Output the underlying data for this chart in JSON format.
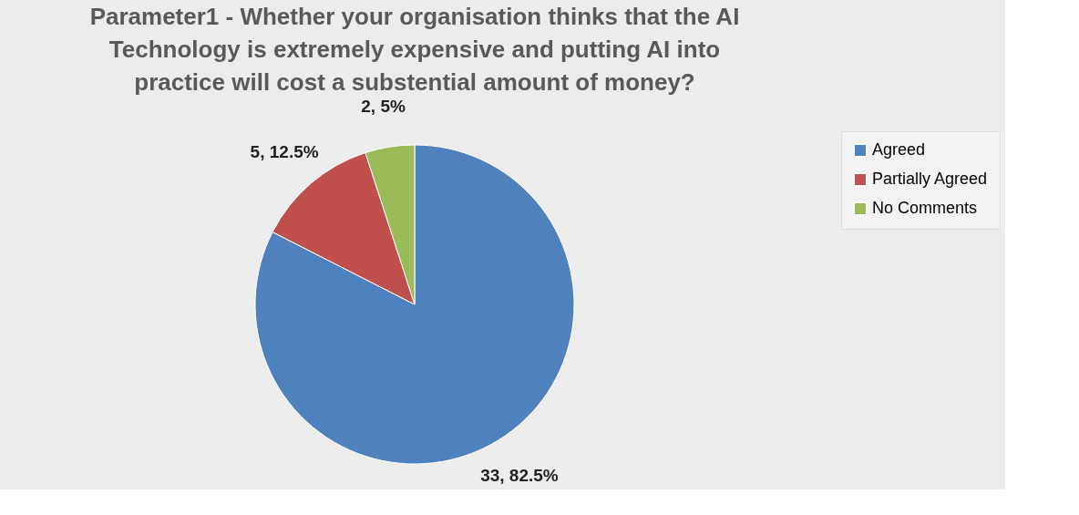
{
  "chart_data": {
    "type": "pie",
    "title": "Parameter1 - Whether your organisation thinks that the AI Technology is extremely expensive and putting AI into practice will cost a substential amount of money?",
    "categories": [
      "Agreed",
      "Partially Agreed",
      "No Comments"
    ],
    "values": [
      33,
      5,
      2
    ],
    "colors": [
      "#4f81bd",
      "#c0504d",
      "#9bbb59"
    ],
    "value_labels": [
      "33, 82.5%",
      "5, 12.5%",
      "2, 5%"
    ],
    "legend": "right"
  }
}
